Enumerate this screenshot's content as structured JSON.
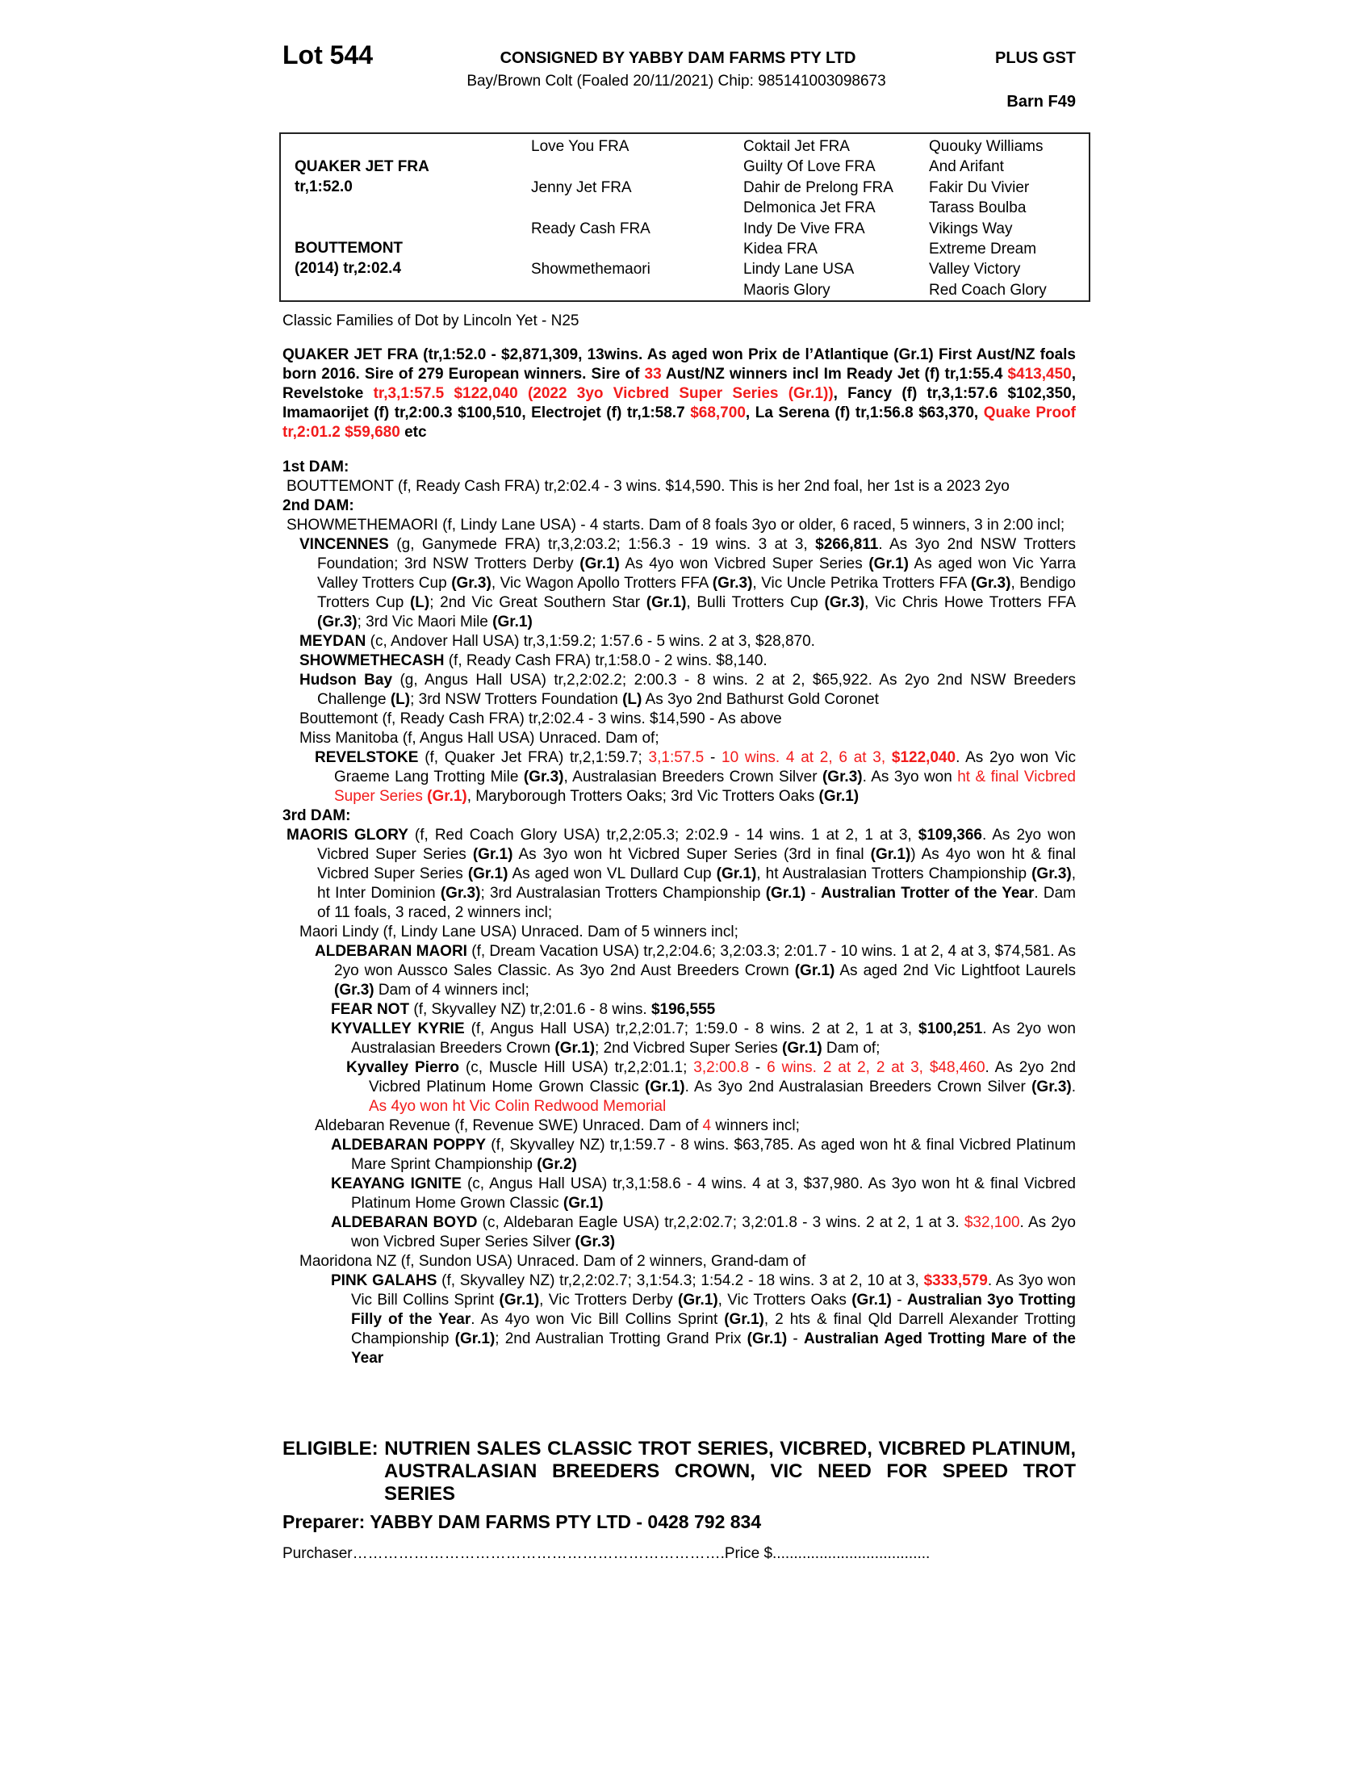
{
  "header": {
    "lot": "Lot 544",
    "consigned": "CONSIGNED BY YABBY DAM FARMS PTY LTD",
    "gst": "PLUS GST",
    "description": "Bay/Brown Colt (Foaled 20/11/2021) Chip: 985141003098673",
    "barn": "Barn F49"
  },
  "pedigree": {
    "sire": [
      "QUAKER JET FRA",
      "tr,1:52.0"
    ],
    "dam": [
      "BOUTTEMONT",
      "(2014) tr,2:02.4"
    ],
    "gen2": [
      "Love You FRA",
      "Jenny Jet FRA",
      "Ready Cash FRA",
      "Showmethemaori"
    ],
    "gen3": [
      "Coktail Jet FRA",
      "Guilty Of Love FRA",
      "Dahir de Prelong FRA",
      "Delmonica Jet FRA",
      "Indy De Vive FRA",
      "Kidea FRA",
      "Lindy Lane USA",
      "Maoris Glory"
    ],
    "gen4": [
      "Quouky Williams",
      "And Arifant",
      "Fakir Du Vivier",
      "Tarass Boulba",
      "Vikings Way",
      "Extreme Dream",
      "Valley Victory",
      "Red Coach Glory"
    ]
  },
  "family": "Classic Families of Dot by Lincoln Yet - N25",
  "colors": {
    "text": "#000000",
    "highlight": "#f21b1b"
  },
  "sire_summary": [
    {
      "t": "QUAKER JET FRA (tr,1:52.0 - $2,871,309, 13wins. As aged won Prix de l’Atlantique (Gr.1) First Aust/NZ foals born 2016. Sire of 279 European winners. Sire of "
    },
    {
      "t": "33",
      "r": 1
    },
    {
      "t": " Aust/NZ winners incl Im Ready Jet (f) tr,1:55.4 "
    },
    {
      "t": "$413,450",
      "r": 1
    },
    {
      "t": ", Revelstoke "
    },
    {
      "t": "tr,3,1:57.5 $122,040 (2022 3yo Vicbred Super Series (Gr.1))",
      "r": 1
    },
    {
      "t": ", Fancy (f) tr,3,1:57.6 $102,350, Imamaorijet (f) tr,2:00.3 $100,510, Electrojet (f) tr,1:58.7 "
    },
    {
      "t": "$68,700",
      "r": 1
    },
    {
      "t": ",  La Serena (f) tr,1:56.8 $63,370, "
    },
    {
      "t": "Quake Proof tr,2:01.2 $59,680",
      "r": 1
    },
    {
      "t": " etc"
    }
  ],
  "body": {
    "paragraphs": [
      {
        "level": "h",
        "segs": [
          {
            "t": "1st DAM:"
          }
        ]
      },
      {
        "level": 0,
        "segs": [
          {
            "t": "BOUTTEMONT (f, Ready Cash FRA) tr,2:02.4 - 3 wins. $14,590. This is her 2nd foal, her 1st is a 2023 2yo"
          }
        ]
      },
      {
        "level": "h",
        "segs": [
          {
            "t": "2nd DAM:"
          }
        ]
      },
      {
        "level": 0,
        "segs": [
          {
            "t": "SHOWMETHEMAORI (f, Lindy Lane USA) - 4 starts. Dam of 8 foals 3yo or older, 6 raced, 5 winners, 3 in 2:00 incl;"
          }
        ]
      },
      {
        "level": 1,
        "segs": [
          {
            "t": "VINCENNES",
            "b": 1
          },
          {
            "t": " (g, Ganymede FRA) tr,3,2:03.2; 1:56.3 - 19 wins. 3 at 3, "
          },
          {
            "t": "$266,811",
            "b": 1
          },
          {
            "t": ". As 3yo 2nd NSW Trotters Foundation; 3rd NSW Trotters Derby "
          },
          {
            "t": "(Gr.1)",
            "b": 1
          },
          {
            "t": " As 4yo won Vicbred Super Series "
          },
          {
            "t": "(Gr.1)",
            "b": 1
          },
          {
            "t": " As aged won Vic Yarra Valley Trotters Cup "
          },
          {
            "t": "(Gr.3)",
            "b": 1
          },
          {
            "t": ", Vic Wagon Apollo Trotters FFA "
          },
          {
            "t": "(Gr.3)",
            "b": 1
          },
          {
            "t": ", Vic Uncle Petrika Trotters FFA "
          },
          {
            "t": "(Gr.3)",
            "b": 1
          },
          {
            "t": ", Bendigo Trotters Cup "
          },
          {
            "t": "(L)",
            "b": 1
          },
          {
            "t": "; 2nd Vic Great Southern Star "
          },
          {
            "t": "(Gr.1)",
            "b": 1
          },
          {
            "t": ", Bulli Trotters Cup "
          },
          {
            "t": "(Gr.3)",
            "b": 1
          },
          {
            "t": ", Vic Chris Howe Trotters FFA "
          },
          {
            "t": "(Gr.3)",
            "b": 1
          },
          {
            "t": "; 3rd Vic Maori Mile "
          },
          {
            "t": "(Gr.1)",
            "b": 1
          }
        ]
      },
      {
        "level": 1,
        "segs": [
          {
            "t": "MEYDAN",
            "b": 1
          },
          {
            "t": " (c, Andover Hall USA) tr,3,1:59.2; 1:57.6 - 5 wins. 2 at 3, $28,870."
          }
        ]
      },
      {
        "level": 1,
        "segs": [
          {
            "t": "SHOWMETHECASH",
            "b": 1
          },
          {
            "t": " (f, Ready Cash FRA) tr,1:58.0 - 2 wins. $8,140."
          }
        ]
      },
      {
        "level": 1,
        "segs": [
          {
            "t": "Hudson Bay",
            "b": 1
          },
          {
            "t": " (g, Angus Hall USA) tr,2,2:02.2; 2:00.3 - 8 wins. 2 at 2, $65,922. As 2yo 2nd NSW Breeders Challenge "
          },
          {
            "t": "(L)",
            "b": 1
          },
          {
            "t": "; 3rd NSW Trotters Foundation "
          },
          {
            "t": "(L)",
            "b": 1
          },
          {
            "t": " As 3yo 2nd Bathurst Gold Coronet"
          }
        ]
      },
      {
        "level": 1,
        "segs": [
          {
            "t": "Bouttemont (f, Ready Cash FRA) tr,2:02.4 - 3 wins. $14,590 - As above"
          }
        ]
      },
      {
        "level": 1,
        "segs": [
          {
            "t": "Miss Manitoba (f, Angus Hall USA) Unraced. Dam of;"
          }
        ]
      },
      {
        "level": 2,
        "segs": [
          {
            "t": "REVELSTOKE",
            "b": 1
          },
          {
            "t": " (f, Quaker Jet FRA) tr,2,1:59.7; "
          },
          {
            "t": "3,1:57.5",
            "r": 1
          },
          {
            "t": " - "
          },
          {
            "t": "10 wins. 4 at 2, 6 at 3, ",
            "r": 1
          },
          {
            "t": "$122,040",
            "b": 1,
            "r": 1
          },
          {
            "t": ". As 2yo won Vic Graeme Lang Trotting Mile "
          },
          {
            "t": "(Gr.3)",
            "b": 1
          },
          {
            "t": ", Australasian Breeders Crown Silver "
          },
          {
            "t": "(Gr.3)",
            "b": 1
          },
          {
            "t": ". As 3yo won "
          },
          {
            "t": "ht & final Vicbred Super Series ",
            "r": 1
          },
          {
            "t": "(Gr.1)",
            "b": 1,
            "r": 1
          },
          {
            "t": ", Maryborough Trotters Oaks; 3rd Vic Trotters Oaks "
          },
          {
            "t": "(Gr.1)",
            "b": 1
          }
        ]
      },
      {
        "level": "h",
        "segs": [
          {
            "t": "3rd DAM:"
          }
        ]
      },
      {
        "level": 0,
        "segs": [
          {
            "t": "MAORIS GLORY",
            "b": 1
          },
          {
            "t": " (f, Red Coach Glory USA) tr,2,2:05.3; 2:02.9 - 14 wins. 1 at 2, 1 at 3, "
          },
          {
            "t": "$109,366",
            "b": 1
          },
          {
            "t": ". As 2yo won Vicbred Super Series "
          },
          {
            "t": "(Gr.1)",
            "b": 1
          },
          {
            "t": " As 3yo won ht Vicbred Super Series (3rd in final "
          },
          {
            "t": "(Gr.1)",
            "b": 1
          },
          {
            "t": ") As 4yo won ht & final Vicbred Super Series "
          },
          {
            "t": "(Gr.1)",
            "b": 1
          },
          {
            "t": " As aged won VL Dullard Cup "
          },
          {
            "t": "(Gr.1)",
            "b": 1
          },
          {
            "t": ", ht Australasian Trotters Championship "
          },
          {
            "t": "(Gr.3)",
            "b": 1
          },
          {
            "t": ", ht Inter Dominion "
          },
          {
            "t": "(Gr.3)",
            "b": 1
          },
          {
            "t": "; 3rd Australasian Trotters Championship "
          },
          {
            "t": "(Gr.1)",
            "b": 1
          },
          {
            "t": " - "
          },
          {
            "t": "Australian Trotter of the Year",
            "b": 1
          },
          {
            "t": ". Dam of 11 foals, 3 raced, 2 winners incl;"
          }
        ]
      },
      {
        "level": 1,
        "segs": [
          {
            "t": "Maori Lindy (f, Lindy Lane USA) Unraced. Dam of 5 winners incl;"
          }
        ]
      },
      {
        "level": 2,
        "segs": [
          {
            "t": "ALDEBARAN MAORI",
            "b": 1
          },
          {
            "t": " (f, Dream Vacation USA) tr,2,2:04.6; 3,2:03.3; 2:01.7 - 10 wins. 1 at 2, 4 at 3, $74,581. As 2yo won Aussco Sales Classic. As 3yo 2nd Aust Breeders Crown "
          },
          {
            "t": "(Gr.1)",
            "b": 1
          },
          {
            "t": " As aged 2nd Vic Lightfoot Laurels "
          },
          {
            "t": "(Gr.3)",
            "b": 1
          },
          {
            "t": " Dam of 4 winners incl;"
          }
        ]
      },
      {
        "level": 3,
        "segs": [
          {
            "t": "FEAR NOT",
            "b": 1
          },
          {
            "t": " (f, Skyvalley NZ) tr,2:01.6 - 8 wins. "
          },
          {
            "t": "$196,555",
            "b": 1
          }
        ]
      },
      {
        "level": 3,
        "segs": [
          {
            "t": "KYVALLEY KYRIE",
            "b": 1
          },
          {
            "t": " (f, Angus Hall USA) tr,2,2:01.7; 1:59.0 - 8 wins. 2 at 2, 1 at 3, "
          },
          {
            "t": "$100,251",
            "b": 1
          },
          {
            "t": ". As 2yo won Australasian Breeders Crown "
          },
          {
            "t": "(Gr.1)",
            "b": 1
          },
          {
            "t": "; 2nd Vicbred Super Series "
          },
          {
            "t": "(Gr.1)",
            "b": 1
          },
          {
            "t": " Dam of;"
          }
        ]
      },
      {
        "level": 4,
        "segs": [
          {
            "t": "Kyvalley Pierro",
            "b": 1
          },
          {
            "t": " (c, Muscle Hill USA) tr,2,2:01.1; "
          },
          {
            "t": "3,2:00.8",
            "r": 1
          },
          {
            "t": " - "
          },
          {
            "t": "6 wins. 2 at 2, 2 at 3, $48,460",
            "r": 1
          },
          {
            "t": ". As 2yo 2nd Vicbred Platinum Home Grown Classic "
          },
          {
            "t": "(Gr.1)",
            "b": 1
          },
          {
            "t": ". As 3yo 2nd Australasian Breeders Crown Silver "
          },
          {
            "t": "(Gr.3)",
            "b": 1
          },
          {
            "t": ". "
          },
          {
            "t": "As 4yo won ht Vic Colin Redwood Memorial",
            "r": 1
          }
        ]
      },
      {
        "level": 2,
        "segs": [
          {
            "t": "Aldebaran Revenue (f, Revenue SWE) Unraced. Dam of "
          },
          {
            "t": "4",
            "r": 1
          },
          {
            "t": " winners incl;"
          }
        ]
      },
      {
        "level": 3,
        "segs": [
          {
            "t": "ALDEBARAN POPPY",
            "b": 1
          },
          {
            "t": " (f, Skyvalley NZ) tr,1:59.7 - 8 wins. $63,785. As aged won ht & final Vicbred Platinum Mare Sprint Championship "
          },
          {
            "t": "(Gr.2)",
            "b": 1
          }
        ]
      },
      {
        "level": 3,
        "segs": [
          {
            "t": "KEAYANG IGNITE",
            "b": 1
          },
          {
            "t": " (c, Angus Hall USA) tr,3,1:58.6 - 4 wins. 4 at 3, $37,980. As 3yo won ht & final Vicbred Platinum Home Grown Classic "
          },
          {
            "t": "(Gr.1)",
            "b": 1
          }
        ]
      },
      {
        "level": 3,
        "segs": [
          {
            "t": "ALDEBARAN BOYD",
            "b": 1
          },
          {
            "t": " (c, Aldebaran Eagle USA) tr,2,2:02.7; 3,2:01.8 - 3 wins. 2 at 2, 1 at 3. "
          },
          {
            "t": "$32,100",
            "r": 1
          },
          {
            "t": ". As 2yo won Vicbred Super Series Silver "
          },
          {
            "t": "(Gr.3)",
            "b": 1
          }
        ]
      },
      {
        "level": 1,
        "segs": [
          {
            "t": "Maoridona NZ (f, Sundon USA) Unraced. Dam of 2 winners, Grand-dam of"
          }
        ]
      },
      {
        "level": 3,
        "segs": [
          {
            "t": "PINK GALAHS",
            "b": 1
          },
          {
            "t": " (f, Skyvalley NZ) tr,2,2:02.7; 3,1:54.3; 1:54.2 - 18 wins. 3 at 2, 10 at 3, "
          },
          {
            "t": "$333,579",
            "b": 1,
            "r": 1
          },
          {
            "t": ". As 3yo won Vic Bill Collins Sprint "
          },
          {
            "t": "(Gr.1)",
            "b": 1
          },
          {
            "t": ", Vic Trotters Derby "
          },
          {
            "t": "(Gr.1)",
            "b": 1
          },
          {
            "t": ", Vic Trotters Oaks "
          },
          {
            "t": "(Gr.1)",
            "b": 1
          },
          {
            "t": " - "
          },
          {
            "t": "Australian 3yo Trotting Filly of the Year",
            "b": 1
          },
          {
            "t": ". As 4yo won Vic Bill Collins Sprint "
          },
          {
            "t": "(Gr.1)",
            "b": 1
          },
          {
            "t": ", 2 hts & final Qld Darrell Alexander Trotting Championship "
          },
          {
            "t": "(Gr.1)",
            "b": 1
          },
          {
            "t": "; 2nd Australian Trotting Grand Prix "
          },
          {
            "t": "(Gr.1)",
            "b": 1
          },
          {
            "t": " - "
          },
          {
            "t": "Australian Aged Trotting Mare of the Year",
            "b": 1
          }
        ]
      }
    ]
  },
  "eligible": "ELIGIBLE: NUTRIEN SALES CLASSIC TROT SERIES, VICBRED, VICBRED PLATINUM, AUSTRALASIAN BREEDERS CROWN, VIC NEED FOR SPEED TROT SERIES",
  "preparer": "Preparer: YABBY DAM FARMS PTY LTD - 0428 792 834",
  "purchaser": "Purchaser……………………………………………………………….Price $....................................."
}
